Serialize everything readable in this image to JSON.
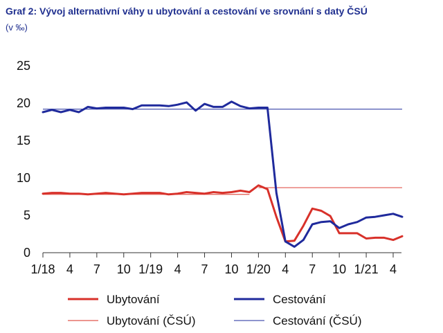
{
  "title": "Graf 2: Vývoj alternativní váhy u ubytování a cestování ve srovnání s daty ČSÚ",
  "subtitle": "(v ‰)",
  "colors": {
    "ubytovani": "#d8312a",
    "cestovani": "#1f2a9c",
    "ubytovani_csu": "#e0564c",
    "cestovani_csu": "#4a55b0",
    "axis": "#333333"
  },
  "chart_data": {
    "type": "line",
    "title": "Graf 2: Vývoj alternativní váhy u ubytování a cestování ve srovnání s daty ČSÚ",
    "ylabel": "(v ‰)",
    "ylim": [
      0,
      25
    ],
    "yticks": [
      0,
      5,
      10,
      15,
      20,
      25
    ],
    "xlim": [
      0,
      39
    ],
    "xticks": [
      {
        "pos": 0,
        "label": "1/18"
      },
      {
        "pos": 3,
        "label": "4"
      },
      {
        "pos": 6,
        "label": "7"
      },
      {
        "pos": 9,
        "label": "10"
      },
      {
        "pos": 12,
        "label": "1/19"
      },
      {
        "pos": 15,
        "label": "4"
      },
      {
        "pos": 18,
        "label": "7"
      },
      {
        "pos": 21,
        "label": "10"
      },
      {
        "pos": 24,
        "label": "1/20"
      },
      {
        "pos": 27,
        "label": "4"
      },
      {
        "pos": 30,
        "label": "7"
      },
      {
        "pos": 33,
        "label": "10"
      },
      {
        "pos": 36,
        "label": "1/21"
      },
      {
        "pos": 39,
        "label": "4"
      }
    ],
    "grid": false,
    "legend_position": "bottom",
    "series": [
      {
        "key": "ubytovani",
        "name": "Ubytování",
        "style": "bold",
        "values": [
          7.9,
          8.0,
          8.0,
          7.9,
          7.9,
          7.8,
          7.9,
          8.0,
          7.9,
          7.8,
          7.9,
          8.0,
          8.0,
          8.0,
          7.8,
          7.9,
          8.1,
          8.0,
          7.9,
          8.1,
          8.0,
          8.1,
          8.3,
          8.1,
          9.0,
          8.5,
          4.8,
          1.5,
          1.6,
          3.6,
          5.9,
          5.6,
          4.9,
          2.6,
          2.6,
          2.6,
          1.9,
          2.0,
          2.0,
          1.7,
          2.2
        ]
      },
      {
        "key": "cestovani",
        "name": "Cestování",
        "style": "bold",
        "values": [
          18.8,
          19.1,
          18.8,
          19.1,
          18.8,
          19.5,
          19.3,
          19.4,
          19.4,
          19.4,
          19.2,
          19.7,
          19.7,
          19.7,
          19.6,
          19.8,
          20.1,
          19.0,
          19.9,
          19.5,
          19.5,
          20.2,
          19.6,
          19.3,
          19.4,
          19.4,
          8.0,
          1.5,
          0.8,
          1.7,
          3.8,
          4.1,
          4.2,
          3.3,
          3.8,
          4.1,
          4.7,
          4.8,
          5.0,
          5.2,
          4.8
        ]
      },
      {
        "key": "ubytovani_csu",
        "name": "Ubytování (ČSÚ)",
        "style": "thin",
        "segments": [
          {
            "x": [
              0,
              23
            ],
            "y": [
              7.8,
              7.8
            ]
          },
          {
            "x": [
              24,
              40
            ],
            "y": [
              8.7,
              8.7
            ]
          }
        ]
      },
      {
        "key": "cestovani_csu",
        "name": "Cestování (ČSÚ)",
        "style": "thin",
        "segments": [
          {
            "x": [
              0,
              40
            ],
            "y": [
              19.2,
              19.2
            ]
          }
        ]
      }
    ]
  }
}
